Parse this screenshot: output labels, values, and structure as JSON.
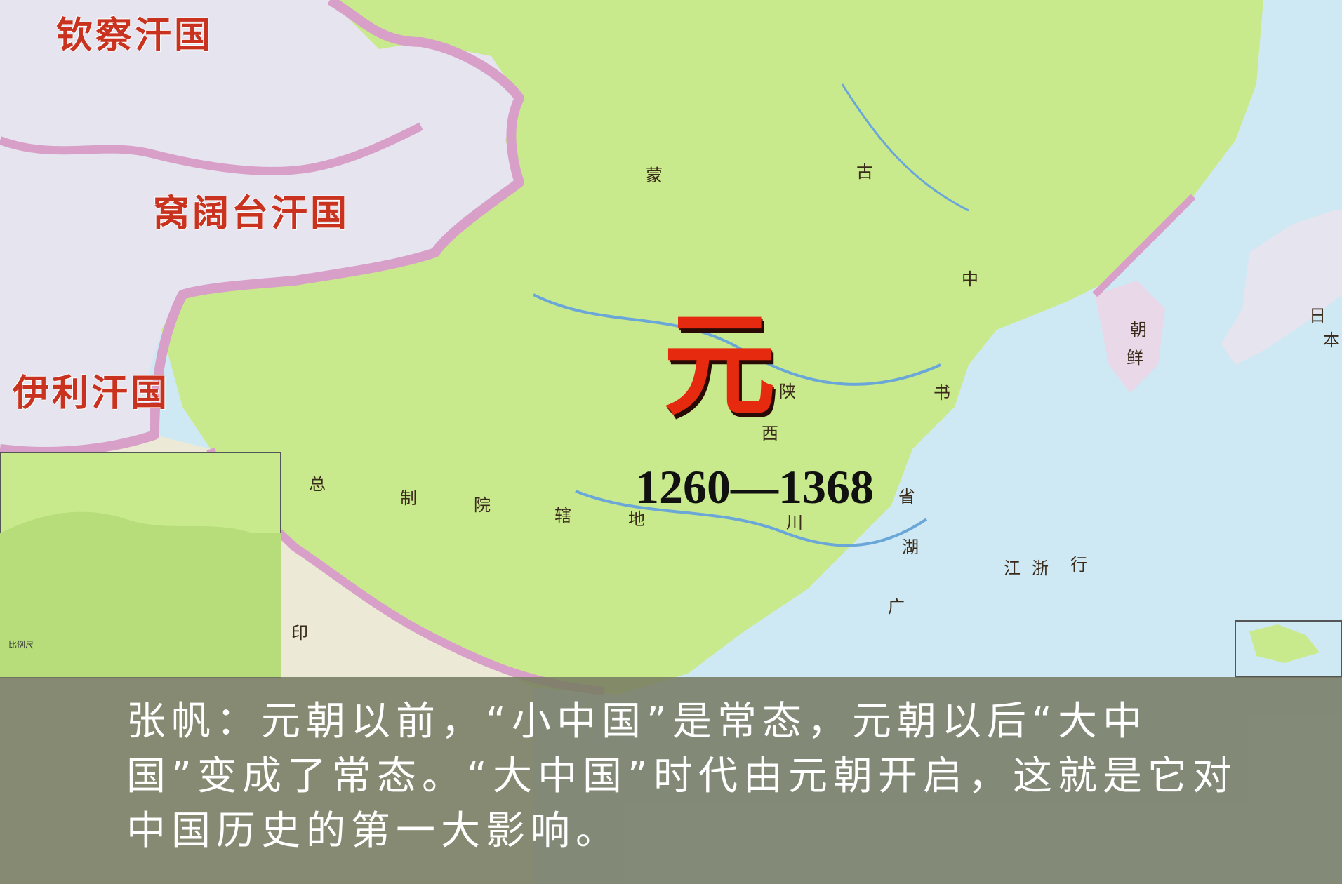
{
  "map": {
    "khanates": {
      "kipchak": "钦察汗国",
      "ogedei": "窝阔台汗国",
      "ilkhanate": "伊利汗国"
    },
    "dynasty": "元",
    "years": "1260—1368",
    "region_labels": {
      "meng": "蒙",
      "gu": "古",
      "zhong": "中",
      "shu": "书",
      "sheng": "省",
      "shan": "陕",
      "xi": "西",
      "chuan": "川",
      "hu": "湖",
      "guang": "广",
      "jiang": "江",
      "zhe": "浙",
      "xing": "行",
      "yin": "印",
      "zong": "总",
      "zhi": "制",
      "yuan": "院",
      "xia": "辖",
      "di": "地",
      "chao": "朝",
      "xian": "鲜",
      "ri": "日",
      "ben": "本"
    },
    "inset_scale_note": "比例尺",
    "colors": {
      "empire_fill": "#c9ea8c",
      "khanate_fill": "#e6e4ee",
      "border_pink": "#d8a0c8",
      "sea": "#cfe9f4",
      "dynasty_red": "#e52a10"
    }
  },
  "subtitle": {
    "text": "张帆：元朝以前，“小中国”是常态，元朝以后“大中国”变成了常态。“大中国”时代由元朝开启，这就是它对中国历史的第一大影响。"
  }
}
